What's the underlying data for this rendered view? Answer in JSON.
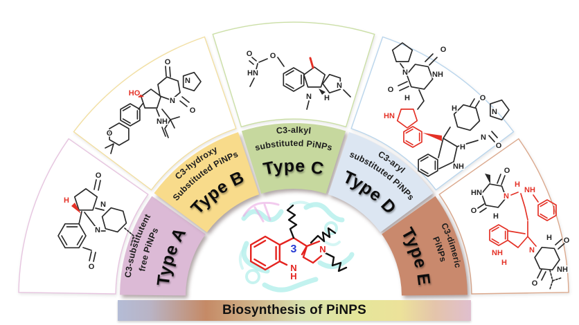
{
  "banner": {
    "label": "Biosynthesis of PiNPS"
  },
  "center": {
    "position_number": "3",
    "n": "N",
    "h": "H"
  },
  "atoms": {
    "o": "O",
    "n": "N",
    "h": "H",
    "nh": "NH",
    "hn": "HN",
    "ho": "HO"
  },
  "segments": [
    {
      "key": "type-a",
      "line1": "C3-substitutent",
      "line2": "free PiNPs",
      "type_label": "Type A",
      "fill": "#dcbad6",
      "border": "#e6c4df"
    },
    {
      "key": "type-b",
      "line1": "C3-hydroxy",
      "line2": "Substituted PiNPs",
      "type_label": "Type B",
      "fill": "#f8db8b",
      "border": "#f2dfa2"
    },
    {
      "key": "type-c",
      "line1": "C3-alkyl",
      "line2": "substituted PiNPs",
      "type_label": "Type C",
      "fill": "#c6d89e",
      "border": "#cbdfa6"
    },
    {
      "key": "type-d",
      "line1": "C3-aryl",
      "line2": "substituted PiNPs",
      "type_label": "Type D",
      "fill": "#dce6f2",
      "border": "#b9d5ec"
    },
    {
      "key": "type-e",
      "line1": "C3-dimeric",
      "line2": "PiNPs",
      "type_label": "Type E",
      "fill": "#c9896d",
      "border": "#dba88c"
    }
  ]
}
